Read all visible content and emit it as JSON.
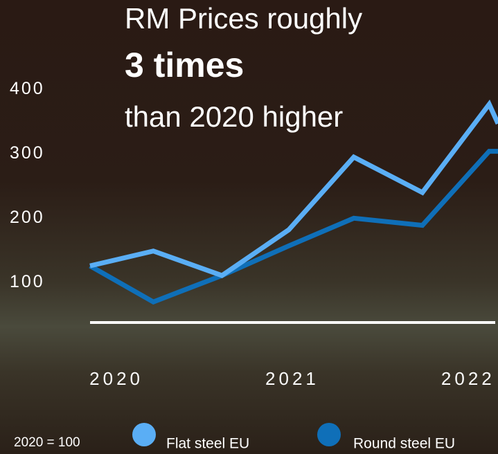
{
  "chart_data": {
    "type": "line",
    "title": "RM Prices roughly",
    "subtitle": "3 times",
    "subtitle2": "than 2020 higher",
    "note": "2020 = 100",
    "x": [
      2019.85,
      2020.21,
      2020.6,
      2020.98,
      2021.35,
      2021.74,
      2022.12,
      2022.17
    ],
    "series": [
      {
        "name": "Flat steel EU",
        "color": "#5aaef5",
        "values": [
          126,
          149,
          111,
          182,
          295,
          240,
          377,
          347
        ]
      },
      {
        "name": "Round steel EU",
        "color": "#0f6fb8",
        "values": [
          126,
          70,
          111,
          157,
          200,
          189,
          304,
          304
        ]
      }
    ],
    "xlim": [
      2019.85,
      2022.17
    ],
    "xticks": [
      2020,
      2021,
      2022
    ],
    "ylim": [
      38,
      539
    ],
    "yticks": [
      100,
      200,
      300,
      400
    ]
  }
}
